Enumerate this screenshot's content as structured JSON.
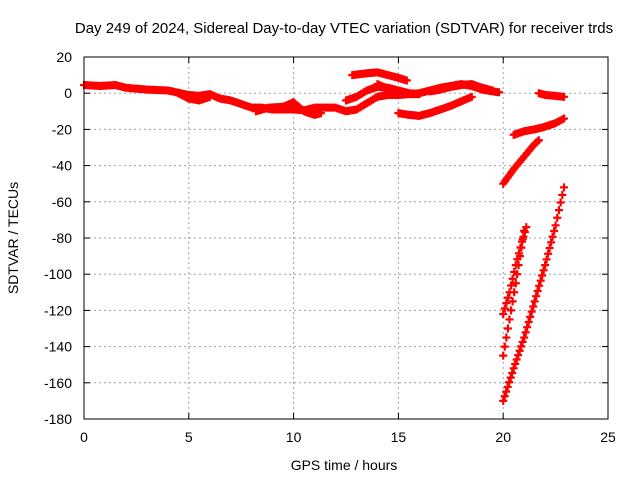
{
  "chart_data": {
    "type": "scatter",
    "title": "Day 249 of 2024, Sidereal Day-to-day VTEC variation (SDTVAR) for receiver trds",
    "xlabel": "GPS time / hours",
    "ylabel": "SDTVAR / TECUs",
    "xlim": [
      0,
      25
    ],
    "ylim": [
      -180,
      20
    ],
    "xticks": [
      "0",
      "5",
      "10",
      "15",
      "20",
      "25"
    ],
    "yticks": [
      "20",
      "0",
      "-20",
      "-40",
      "-60",
      "-80",
      "-100",
      "-120",
      "-140",
      "-160",
      "-180"
    ],
    "grid": true,
    "marker_color": "#ff0000",
    "series": [
      {
        "points": [
          [
            0.0,
            4.5
          ],
          [
            0.8,
            4.0
          ],
          [
            1.5,
            4.5
          ],
          [
            2.0,
            3.0
          ],
          [
            3.0,
            2.0
          ],
          [
            4.0,
            1.5
          ],
          [
            5.0,
            -1.0
          ],
          [
            5.5,
            -1.5
          ],
          [
            6.0,
            -0.5
          ],
          [
            6.5,
            -3.0
          ],
          [
            7.0,
            -4.0
          ],
          [
            7.5,
            -6.0
          ],
          [
            8.0,
            -8.0
          ],
          [
            8.5,
            -8.0
          ],
          [
            9.0,
            -9.0
          ],
          [
            10.0,
            -9.0
          ],
          [
            10.5,
            -9.5
          ],
          [
            11.0,
            -8.0
          ],
          [
            12.0,
            -8.0
          ],
          [
            12.5,
            -10.0
          ],
          [
            13.0,
            -9.0
          ],
          [
            13.5,
            -5.5
          ],
          [
            14.0,
            -2.0
          ],
          [
            14.5,
            -1.0
          ],
          [
            15.0,
            -1.0
          ],
          [
            16.0,
            0.0
          ],
          [
            17.0,
            3.0
          ],
          [
            17.5,
            4.0
          ],
          [
            18.0,
            5.0
          ],
          [
            18.5,
            4.0
          ],
          [
            19.0,
            2.0
          ],
          [
            19.5,
            1.0
          ],
          [
            19.8,
            0.5
          ]
        ]
      },
      {
        "points": [
          [
            4.5,
            0.0
          ],
          [
            5.0,
            -3.0
          ],
          [
            5.5,
            -4.0
          ],
          [
            6.0,
            -2.0
          ]
        ]
      },
      {
        "points": [
          [
            8.2,
            -10.0
          ],
          [
            8.8,
            -8.0
          ],
          [
            9.5,
            -7.5
          ],
          [
            10.0,
            -5.0
          ],
          [
            10.5,
            -10.0
          ],
          [
            11.0,
            -12.0
          ],
          [
            11.3,
            -11.0
          ]
        ]
      },
      {
        "points": [
          [
            12.5,
            -4.0
          ],
          [
            13.0,
            -2.0
          ],
          [
            13.5,
            1.5
          ],
          [
            14.0,
            3.5
          ],
          [
            14.5,
            3.0
          ],
          [
            15.0,
            1.5
          ],
          [
            15.5,
            0.0
          ],
          [
            16.0,
            -0.5
          ]
        ]
      },
      {
        "points": [
          [
            12.8,
            10.0
          ],
          [
            13.5,
            11.0
          ],
          [
            14.0,
            11.5
          ],
          [
            14.5,
            10.0
          ],
          [
            15.0,
            8.5
          ],
          [
            15.4,
            7.0
          ]
        ]
      },
      {
        "points": [
          [
            14.0,
            5.0
          ],
          [
            14.5,
            2.5
          ],
          [
            15.0,
            1.0
          ],
          [
            15.5,
            -0.5
          ],
          [
            16.0,
            -0.5
          ]
        ]
      },
      {
        "points": [
          [
            15.0,
            -11.0
          ],
          [
            15.5,
            -12.0
          ],
          [
            16.0,
            -12.5
          ],
          [
            16.5,
            -11.0
          ],
          [
            17.0,
            -9.0
          ],
          [
            17.5,
            -7.0
          ],
          [
            18.0,
            -4.5
          ],
          [
            18.5,
            -2.0
          ]
        ]
      },
      {
        "points": [
          [
            16.5,
            1.0
          ],
          [
            17.0,
            2.0
          ],
          [
            17.5,
            3.5
          ],
          [
            18.0,
            4.5
          ],
          [
            18.5,
            5.0
          ],
          [
            19.0,
            3.0
          ],
          [
            19.5,
            1.5
          ]
        ]
      },
      {
        "points": [
          [
            20.0,
            -50.0
          ],
          [
            20.5,
            -42.0
          ],
          [
            21.0,
            -35.0
          ],
          [
            21.5,
            -28.0
          ],
          [
            21.7,
            -26.0
          ]
        ]
      },
      {
        "points": [
          [
            20.5,
            -23.0
          ],
          [
            21.0,
            -21.0
          ],
          [
            21.5,
            -20.0
          ],
          [
            22.0,
            -18.5
          ],
          [
            22.5,
            -16.5
          ],
          [
            22.9,
            -14.0
          ]
        ]
      },
      {
        "points": [
          [
            21.7,
            0.0
          ],
          [
            22.0,
            -1.0
          ],
          [
            22.5,
            -1.5
          ],
          [
            22.9,
            -2.0
          ]
        ]
      },
      {
        "points": [
          [
            20.0,
            -122.0
          ],
          [
            20.3,
            -110.0
          ],
          [
            20.6,
            -95.0
          ],
          [
            20.9,
            -82.0
          ],
          [
            21.1,
            -74.0
          ]
        ]
      },
      {
        "points": [
          [
            20.0,
            -145.0
          ],
          [
            20.3,
            -125.0
          ],
          [
            20.6,
            -105.0
          ],
          [
            20.8,
            -90.0
          ],
          [
            21.0,
            -76.0
          ]
        ]
      },
      {
        "points": [
          [
            20.0,
            -170.0
          ],
          [
            20.5,
            -152.0
          ],
          [
            21.0,
            -135.0
          ],
          [
            21.5,
            -115.0
          ],
          [
            22.0,
            -95.0
          ],
          [
            22.5,
            -73.0
          ],
          [
            22.9,
            -52.0
          ]
        ]
      }
    ]
  }
}
